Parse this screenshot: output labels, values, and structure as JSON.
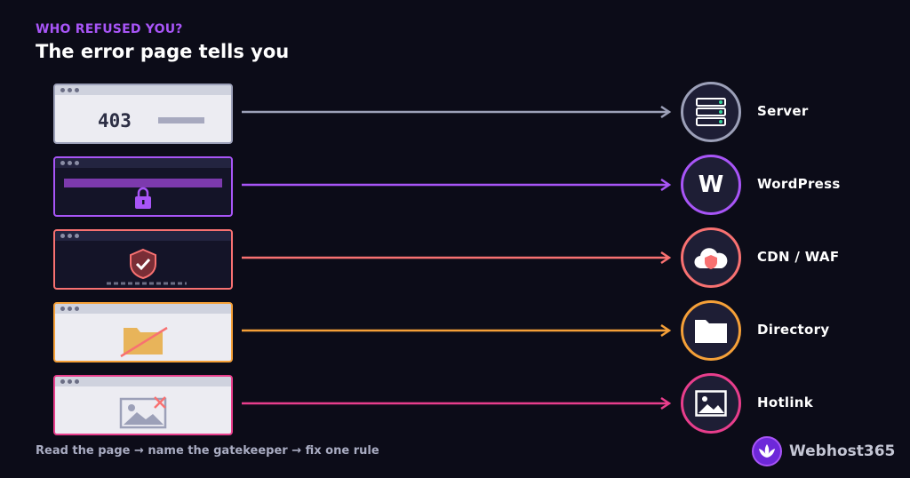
{
  "header": {
    "eyebrow": "WHO REFUSED YOU?",
    "title": "The error page tells you"
  },
  "rows": [
    {
      "label": "Server",
      "screen_text": "403",
      "color": "#9ca0b8",
      "screen_icon": "error-code",
      "circle_icon": "server-icon"
    },
    {
      "label": "WordPress",
      "circle_text": "W",
      "color": "#a855f7",
      "screen_icon": "lock-icon",
      "circle_icon": "wordpress-icon"
    },
    {
      "label": "CDN / WAF",
      "color": "#f87171",
      "screen_icon": "shield-check-icon",
      "circle_icon": "cloud-shield-icon"
    },
    {
      "label": "Directory",
      "color": "#f5a038",
      "screen_icon": "folder-blocked-icon",
      "circle_icon": "folder-icon"
    },
    {
      "label": "Hotlink",
      "color": "#e83e8c",
      "screen_icon": "image-blocked-icon",
      "circle_icon": "image-icon"
    }
  ],
  "footer": {
    "text": "Read the page → name the gatekeeper → fix one rule"
  },
  "brand": {
    "name": "Webhost365"
  }
}
